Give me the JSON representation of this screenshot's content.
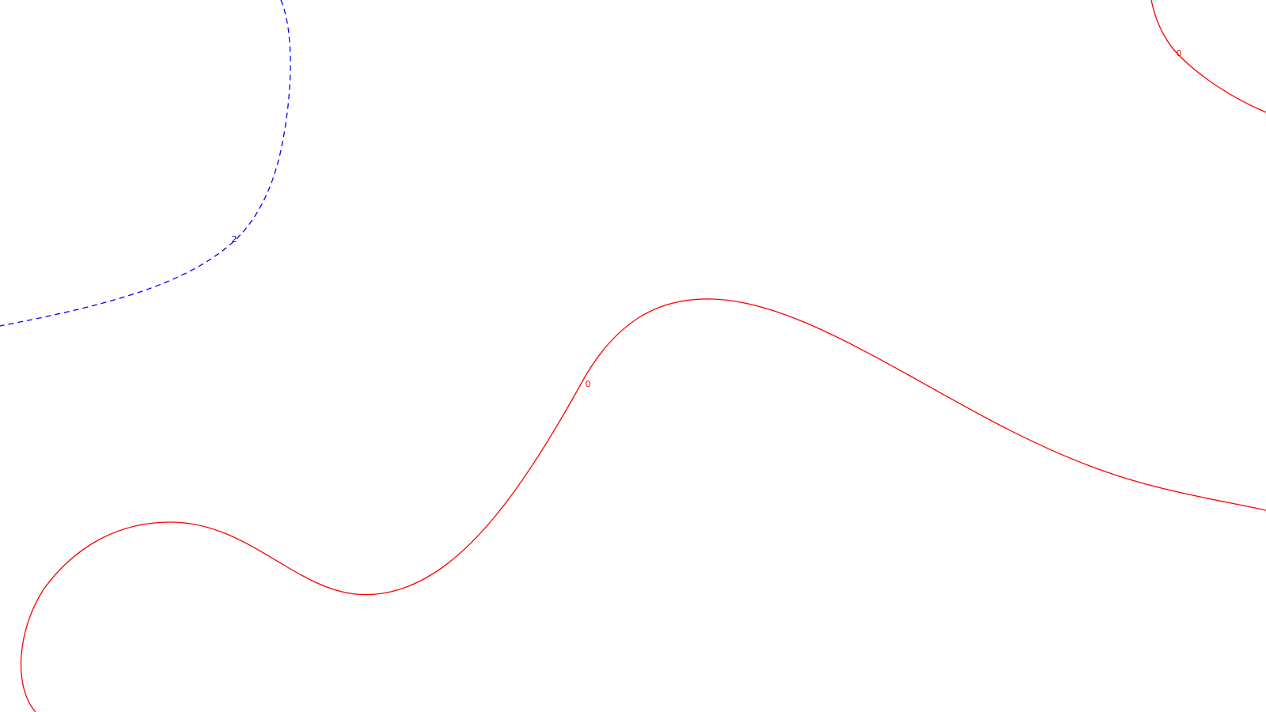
{
  "chart_data": {
    "type": "contour",
    "title": "",
    "xlabel": "",
    "ylabel": "",
    "grid": false,
    "legend": "none",
    "series": [
      {
        "level": "2",
        "color": "#0000ff",
        "line_style": "dashed",
        "labels": [
          "2"
        ]
      },
      {
        "level": "0",
        "color": "#ff0000",
        "line_style": "solid",
        "labels": [
          "0",
          "0"
        ]
      }
    ]
  }
}
